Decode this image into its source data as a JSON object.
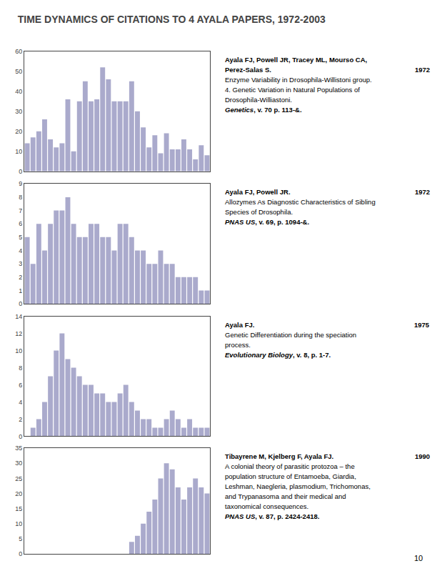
{
  "title": "TIME DYNAMICS OF CITATIONS TO 4 AYALA PAPERS, 1972-2003",
  "page_number": "10",
  "chart_data": [
    {
      "type": "bar",
      "categories": [
        null,
        null,
        null,
        null,
        null,
        null,
        null,
        null,
        null,
        null,
        null,
        null,
        null,
        null,
        null,
        null,
        null,
        null,
        null,
        null,
        null,
        null,
        null,
        null,
        null,
        null,
        null,
        null,
        null,
        null,
        null,
        null
      ],
      "values": [
        14,
        17,
        20,
        26,
        16,
        12,
        14,
        36,
        10,
        35,
        45,
        35,
        36,
        52,
        46,
        35,
        35,
        35,
        45,
        30,
        22,
        12,
        18,
        9,
        19,
        11,
        11,
        16,
        11,
        6,
        13,
        8
      ],
      "color": "#aaaacc",
      "ylim": [
        0,
        60
      ],
      "yticks": [
        0,
        10,
        20,
        30,
        40,
        50,
        60
      ],
      "grid": false,
      "tick_labels": "y",
      "annotation": {
        "authors": [
          "Ayala FJ, Powell JR, Tracey ML, Mourso CA,",
          "Perez-Salas S."
        ],
        "year": "1972",
        "text": [
          "Enzyme Variability in Drosophila-Willistoni group.",
          "4. Genetic Variation in Natural Populations of",
          "Drosophila-Williastoni."
        ],
        "journal": "Genetics",
        "source": ", v. 70 p. 113-&."
      }
    },
    {
      "type": "bar",
      "categories": [
        null,
        null,
        null,
        null,
        null,
        null,
        null,
        null,
        null,
        null,
        null,
        null,
        null,
        null,
        null,
        null,
        null,
        null,
        null,
        null,
        null,
        null,
        null,
        null,
        null,
        null,
        null,
        null,
        null,
        null,
        null,
        null
      ],
      "values": [
        5,
        3,
        6,
        4,
        6,
        7,
        7,
        8,
        6,
        5,
        5,
        6,
        6,
        5,
        5,
        4,
        6,
        6,
        5,
        4,
        4,
        3,
        3,
        4,
        3,
        3,
        2,
        2,
        2,
        2,
        1,
        1
      ],
      "color": "#aaaacc",
      "ylim": [
        0,
        9
      ],
      "yticks": [
        0,
        1,
        2,
        3,
        4,
        5,
        6,
        7,
        8,
        9
      ],
      "grid": false,
      "tick_labels": "y",
      "annotation": {
        "authors": [
          "Ayala FJ, Powell JR."
        ],
        "year": "1972",
        "text": [
          "Allozymes As Diagnostic Characteristics of Sibling",
          "Species of Drosophila."
        ],
        "journal": "PNAS US",
        "source": ", v. 69, p. 1094-&."
      }
    },
    {
      "type": "bar",
      "categories": [
        null,
        null,
        null,
        null,
        null,
        null,
        null,
        null,
        null,
        null,
        null,
        null,
        null,
        null,
        null,
        null,
        null,
        null,
        null,
        null,
        null,
        null,
        null,
        null,
        null,
        null,
        null,
        null,
        null,
        null,
        null,
        null
      ],
      "values": [
        0,
        1,
        2,
        4,
        7,
        10,
        12,
        9,
        8,
        7,
        6,
        6,
        5,
        5,
        4,
        4,
        5,
        6,
        4,
        3,
        2,
        2,
        1,
        1,
        2,
        3,
        2,
        1,
        2,
        1,
        1,
        1
      ],
      "color": "#aaaacc",
      "ylim": [
        0,
        14
      ],
      "yticks": [
        0,
        2,
        4,
        6,
        8,
        10,
        12,
        14
      ],
      "grid": false,
      "tick_labels": "y",
      "annotation": {
        "authors": [
          "Ayala FJ."
        ],
        "year": "1975",
        "text": [
          "Genetic Differentiation during the speciation",
          "process."
        ],
        "journal": "Evolutionary Biology",
        "source": ", v. 8, p. 1-7."
      }
    },
    {
      "type": "bar",
      "categories": [
        null,
        null,
        null,
        null,
        null,
        null,
        null,
        null,
        null,
        null,
        null,
        null,
        null,
        null,
        null,
        null,
        null,
        null,
        null,
        null,
        null,
        null,
        null,
        null,
        null,
        null,
        null,
        null,
        null,
        null,
        null,
        null
      ],
      "values": [
        0,
        0,
        0,
        0,
        0,
        0,
        0,
        0,
        0,
        0,
        0,
        0,
        0,
        0,
        0,
        0,
        0,
        0,
        4,
        6,
        10,
        14,
        18,
        25,
        30,
        28,
        22,
        18,
        22,
        25,
        22,
        20
      ],
      "color": "#aaaacc",
      "ylim": [
        0,
        35
      ],
      "yticks": [
        0,
        5,
        10,
        15,
        20,
        25,
        30,
        35
      ],
      "grid": false,
      "tick_labels": "y",
      "annotation": {
        "authors": [
          "Tibayrene M, Kjelberg F, Ayala FJ."
        ],
        "year": "1990",
        "text": [
          "A colonial theory of parasitic protozoa – the",
          "population structure of Entamoeba, Giardia,",
          "Leshman, Naegleria, plasmodium, Trichomonas,",
          "and Trypanasoma and their medical and",
          "taxonomical consequences."
        ],
        "journal": "PNAS US",
        "source": ", v. 87, p. 2424-2418."
      }
    }
  ]
}
